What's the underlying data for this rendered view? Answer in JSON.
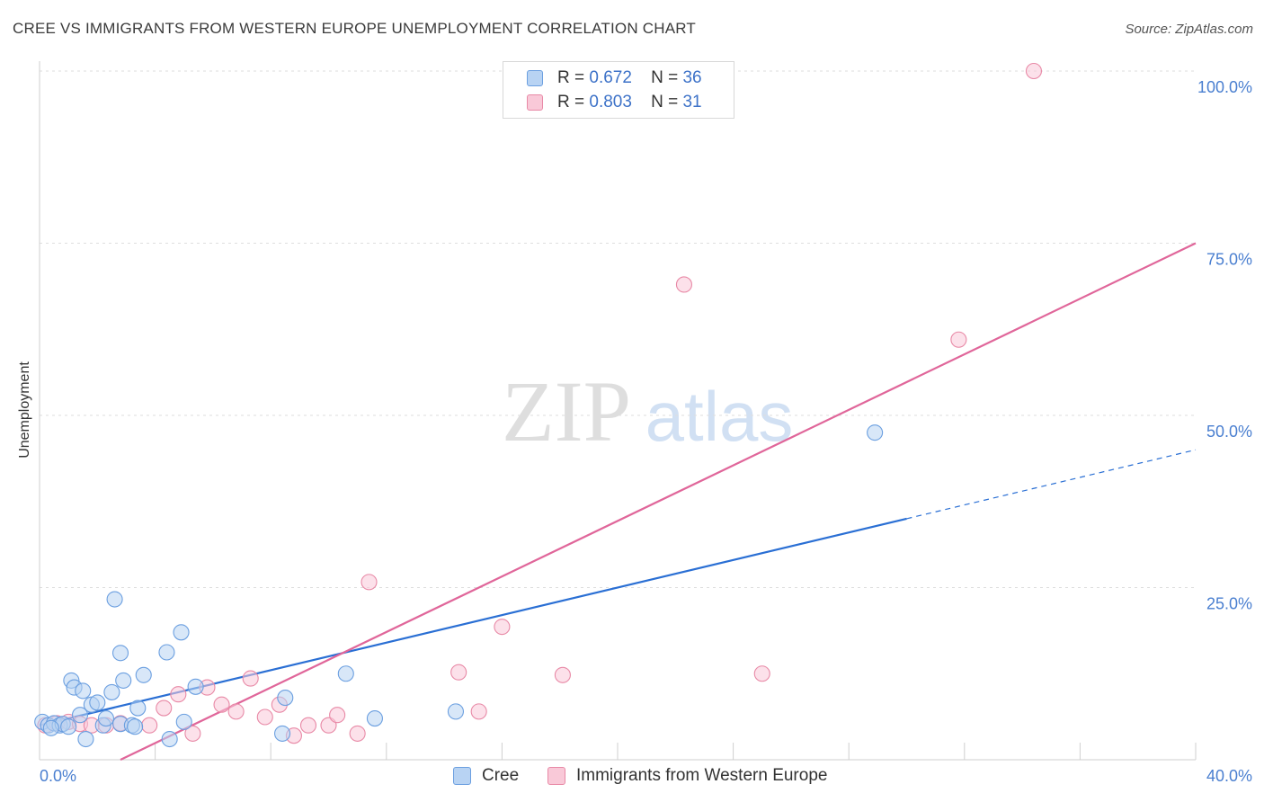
{
  "chart_data": {
    "type": "scatter",
    "title": "CREE VS IMMIGRANTS FROM WESTERN EUROPE UNEMPLOYMENT CORRELATION CHART",
    "source": "Source: ZipAtlas.com",
    "ylabel": "Unemployment",
    "xlabel": "",
    "xlim": [
      0,
      40
    ],
    "ylim": [
      0,
      100
    ],
    "x_tick_labels": [
      "0.0%",
      "40.0%"
    ],
    "y_ticks": [
      25,
      50,
      75,
      100
    ],
    "y_tick_labels": [
      "25.0%",
      "50.0%",
      "75.0%",
      "100.0%"
    ],
    "grid": true,
    "watermark": {
      "zip": "ZIP",
      "atlas": "atlas"
    },
    "legend_labels": {
      "r": "R =",
      "n": "N ="
    },
    "series": [
      {
        "name": "Cree",
        "color": "#6b9fe0",
        "fill": "#b8d3f3",
        "line_color": "#2a6fd4",
        "r": "0.672",
        "n": "36",
        "trend": {
          "x0": 0.0,
          "y0": 5.0,
          "x1": 30.0,
          "y1": 35.0,
          "dash_to_x": 40.0,
          "dash_to_y": 45.0
        },
        "points": [
          [
            0.1,
            5.5
          ],
          [
            0.3,
            5.0
          ],
          [
            0.5,
            5.3
          ],
          [
            0.7,
            5.0
          ],
          [
            0.8,
            5.2
          ],
          [
            1.0,
            4.8
          ],
          [
            1.1,
            11.5
          ],
          [
            1.2,
            10.5
          ],
          [
            1.4,
            6.5
          ],
          [
            1.5,
            10.0
          ],
          [
            1.6,
            3.0
          ],
          [
            1.8,
            8.0
          ],
          [
            2.0,
            8.3
          ],
          [
            2.2,
            5.0
          ],
          [
            2.3,
            6.0
          ],
          [
            2.5,
            9.8
          ],
          [
            2.6,
            23.3
          ],
          [
            2.8,
            5.2
          ],
          [
            2.8,
            15.5
          ],
          [
            2.9,
            11.5
          ],
          [
            3.2,
            5.0
          ],
          [
            3.3,
            4.8
          ],
          [
            3.4,
            7.5
          ],
          [
            3.6,
            12.3
          ],
          [
            4.4,
            15.6
          ],
          [
            4.5,
            3.0
          ],
          [
            4.9,
            18.5
          ],
          [
            5.0,
            5.5
          ],
          [
            5.4,
            10.6
          ],
          [
            8.4,
            3.8
          ],
          [
            8.5,
            9.0
          ],
          [
            10.6,
            12.5
          ],
          [
            11.6,
            6.0
          ],
          [
            14.4,
            7.0
          ],
          [
            28.9,
            47.5
          ],
          [
            0.4,
            4.6
          ]
        ]
      },
      {
        "name": "Immigrants from Western Europe",
        "color": "#e889a6",
        "fill": "#f9c9d8",
        "line_color": "#e0669a",
        "r": "0.803",
        "n": "31",
        "trend": {
          "x0": 2.8,
          "y0": 0.0,
          "x1": 40.0,
          "y1": 75.0
        },
        "points": [
          [
            0.2,
            5.0
          ],
          [
            0.6,
            5.3
          ],
          [
            1.0,
            5.5
          ],
          [
            1.4,
            5.2
          ],
          [
            1.8,
            5.0
          ],
          [
            2.3,
            5.0
          ],
          [
            2.8,
            5.3
          ],
          [
            3.8,
            5.0
          ],
          [
            4.3,
            7.5
          ],
          [
            4.8,
            9.5
          ],
          [
            5.3,
            3.8
          ],
          [
            5.8,
            10.5
          ],
          [
            6.3,
            8.0
          ],
          [
            6.8,
            7.0
          ],
          [
            7.3,
            11.8
          ],
          [
            7.8,
            6.2
          ],
          [
            8.3,
            8.0
          ],
          [
            8.8,
            3.5
          ],
          [
            9.3,
            5.0
          ],
          [
            10.0,
            5.0
          ],
          [
            10.3,
            6.5
          ],
          [
            11.0,
            3.8
          ],
          [
            11.4,
            25.8
          ],
          [
            14.5,
            12.7
          ],
          [
            15.2,
            7.0
          ],
          [
            16.0,
            19.3
          ],
          [
            18.1,
            12.3
          ],
          [
            22.3,
            69.0
          ],
          [
            25.0,
            12.5
          ],
          [
            31.8,
            61.0
          ],
          [
            34.4,
            100.0
          ]
        ]
      }
    ]
  }
}
